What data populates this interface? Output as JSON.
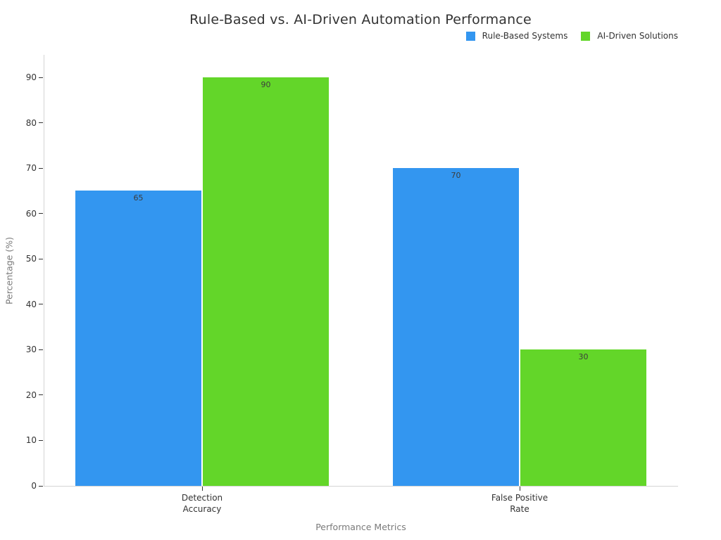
{
  "chart_data": {
    "type": "bar",
    "title": "Rule-Based vs. AI-Driven Automation Performance",
    "xlabel": "Performance Metrics",
    "ylabel": "Percentage (%)",
    "categories": [
      "Detection\nAccuracy",
      "False Positive\nRate"
    ],
    "series": [
      {
        "name": "Rule-Based Systems",
        "color": "#3396f0",
        "values": [
          65,
          70
        ]
      },
      {
        "name": "AI-Driven Solutions",
        "color": "#63d629",
        "values": [
          90,
          30
        ]
      }
    ],
    "ylim": [
      0,
      95
    ],
    "yticks": [
      0,
      10,
      20,
      30,
      40,
      50,
      60,
      70,
      80,
      90
    ],
    "bar_value_labels": [
      [
        65,
        70
      ],
      [
        90,
        30
      ]
    ],
    "grid": false,
    "legend_position": "top-right",
    "background": "#ffffff",
    "axis_line_color": "#d4d4d4",
    "tick_color": "#333333",
    "text_color": "#333333",
    "axis_title_color": "#7a7a7a"
  }
}
